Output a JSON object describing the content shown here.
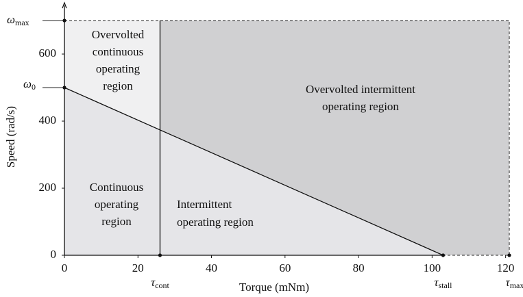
{
  "chart_data": {
    "type": "operating-regions",
    "xlabel": "Torque (mNm)",
    "ylabel": "Speed (rad/s)",
    "xlim": [
      0,
      121
    ],
    "ylim": [
      0,
      700
    ],
    "xticks": [
      0,
      20,
      40,
      60,
      80,
      100,
      120
    ],
    "yticks": [
      0,
      200,
      400,
      600
    ],
    "tau_cont": {
      "value": 26,
      "symbol": "τ",
      "subscript": "cont"
    },
    "tau_stall": {
      "value": 103,
      "symbol": "τ",
      "subscript": "stall"
    },
    "tau_max": {
      "value": 121,
      "symbol": "τ",
      "subscript": "max"
    },
    "omega_0": {
      "value": 500,
      "symbol": "ω",
      "subscript": "0"
    },
    "omega_max": {
      "value": 700,
      "symbol": "ω",
      "subscript": "max"
    },
    "regions": [
      {
        "lines": [
          "Overvolted",
          "continuous",
          "operating",
          "region"
        ],
        "color": "#f0f0f1"
      },
      {
        "lines": [
          "Overvolted intermittent",
          "operating region"
        ],
        "color": "#d0d0d2"
      },
      {
        "lines": [
          "Continuous",
          "operating",
          "region"
        ],
        "color": "#e5e5e8"
      },
      {
        "lines": [
          "Intermittent",
          "operating region"
        ],
        "color": "#e5e5e8"
      }
    ]
  }
}
